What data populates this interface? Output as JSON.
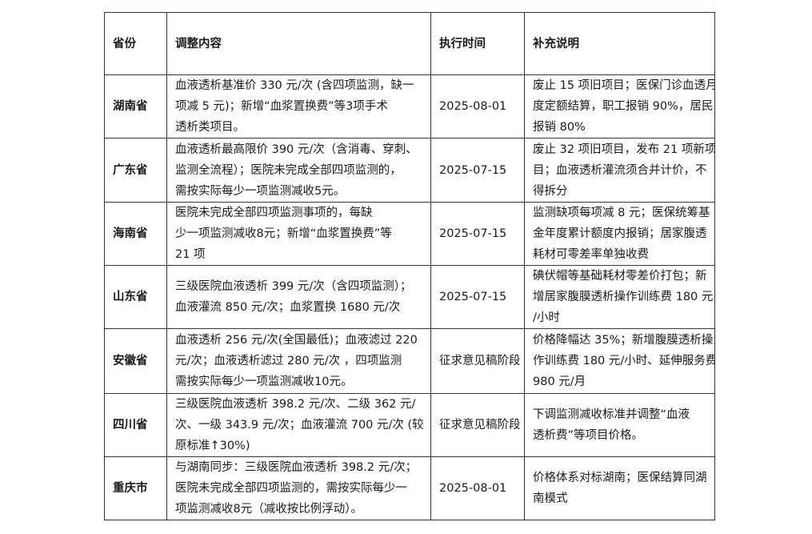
{
  "headers": [
    "省份",
    "调整内容",
    "执行时间",
    "补充说明"
  ],
  "rows": [
    {
      "province": "湖南省",
      "content": [
        "血液透析基准价 330 元/次 (含四项监测，缺一",
        "项减 5 元)；新增“血浆置换费”等3项手术",
        "透析类项目。"
      ],
      "date": "2025-08-01",
      "notes": [
        "废止 15 项旧项目；医保门诊血透月",
        "度定额结算，职工报销 90%，居民",
        "报销 80%"
      ]
    },
    {
      "province": "广东省",
      "content": [
        "血液透析最高限价 390 元/次（含消毒、穿刺、",
        "监测全流程）；医院未完成全部四项监测的，",
        "需按实际每少一项监测减收5元。"
      ],
      "date": "2025-07-15",
      "notes": [
        "废止 32 项旧项目，发布 21 项新项",
        "目；血液透析灌流须合并计价，不",
        "得拆分"
      ]
    },
    {
      "province": "海南省",
      "content": [
        "医院未完成全部四项监测事项的，每缺",
        "少一项监测减收8元；新增“血浆置换费”等",
        "21 项"
      ],
      "date": "2025-07-15",
      "notes": [
        "监测缺项每项减 8 元；医保统筹基",
        "金年度累计额度内报销；居家腹透",
        "耗材可零差率单独收费"
      ]
    },
    {
      "province": "山东省",
      "content": [
        "三级医院血液透析 399 元/次（含四项监测）；",
        "血液灌流 850 元/次；血浆置换 1680 元/次"
      ],
      "date": "2025-07-15",
      "notes": [
        "碘伏帽等基础耗材零差价打包；新",
        "增居家腹膜透析操作训练费 180 元",
        "/小时"
      ]
    },
    {
      "province": "安徽省",
      "content": [
        "血液透析 256 元/次(全国最低)；血液滤过 220",
        "元/次；血液透析滤过 280 元/次 ，四项监测",
        "需按实际每少一项监测减收10元。"
      ],
      "date": "征求意见稿阶段",
      "notes": [
        "价格降幅达 35%；新增腹膜透析操",
        "作训练费 180 元/小时、延伸服务费",
        "980 元/月"
      ]
    },
    {
      "province": "四川省",
      "content": [
        "三级医院血液透析 398.2 元/次、二级 362 元/",
        "次、一级 343.9 元/次；血液灌流 700 元/次 (较",
        "原标准↑30%)"
      ],
      "date": "征求意见稿阶段",
      "notes": [
        "下调监测减收标准并调整“血液",
        "透析费”等项目价格。"
      ]
    },
    {
      "province": "重庆市",
      "content": [
        "与湖南同步：三级医院血液透析 398.2 元/次；",
        "医院未完成全部四项监测的，需按实际每少一",
        "项监测减收8元（减收按比例浮动）。"
      ],
      "date": "2025-08-01",
      "notes": [
        "价格体系对标湖南；医保结算同湖",
        "南模式"
      ]
    }
  ]
}
